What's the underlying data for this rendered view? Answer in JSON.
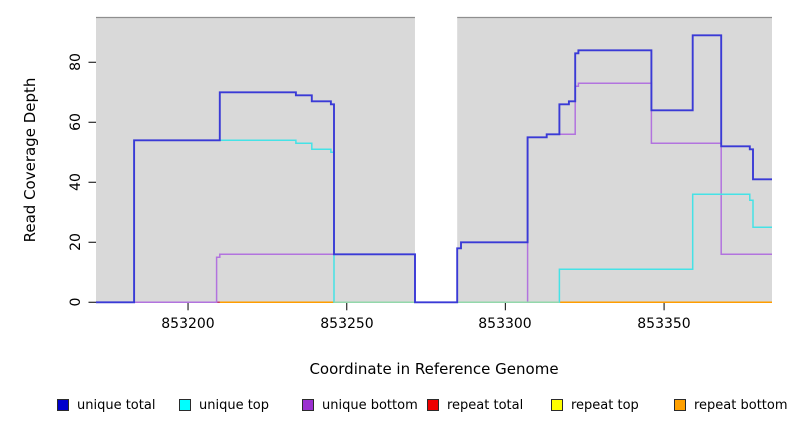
{
  "legend": {
    "items": [
      {
        "label": "unique total",
        "color": "#0000cd"
      },
      {
        "label": "unique top",
        "color": "#00ffff"
      },
      {
        "label": "unique bottom",
        "color": "#9b30d0"
      },
      {
        "label": "repeat total",
        "color": "#ee0000"
      },
      {
        "label": "repeat top",
        "color": "#ffff00"
      },
      {
        "label": "repeat bottom",
        "color": "#ffa000"
      }
    ]
  },
  "chart_data": {
    "type": "line",
    "subtype": "step",
    "title": "",
    "xlabel": "Coordinate in Reference Genome",
    "ylabel": "Read Coverage Depth",
    "xlim": [
      853171,
      853384
    ],
    "ylim": [
      0,
      95
    ],
    "x_ticks": [
      853200,
      853250,
      853300,
      853350
    ],
    "x_tick_labels": [
      "853200",
      "853250",
      "853300",
      "853350"
    ],
    "y_ticks": [
      0,
      20,
      40,
      60,
      80
    ],
    "y_tick_labels": [
      "0",
      "20",
      "40",
      "60",
      "80"
    ],
    "grid": false,
    "plot_bg": "#d9d9d9",
    "plot_border_top": "#8f8f8f",
    "gap_region": {
      "from": 853271.5,
      "to": 853284.8,
      "fill": "#ffffff"
    },
    "legend_position": "bottom",
    "series": [
      {
        "name": "unique total",
        "color": "#3a3ad6",
        "steps": [
          [
            853171,
            0
          ],
          [
            853183,
            54
          ],
          [
            853210,
            70
          ],
          [
            853234,
            69
          ],
          [
            853239,
            67
          ],
          [
            853245,
            66
          ],
          [
            853246,
            16
          ],
          [
            853271.5,
            0
          ],
          [
            853284.8,
            18
          ],
          [
            853286,
            20
          ],
          [
            853307,
            55
          ],
          [
            853313,
            56
          ],
          [
            853317,
            66
          ],
          [
            853320,
            67
          ],
          [
            853322,
            83
          ],
          [
            853323,
            84
          ],
          [
            853346,
            64
          ],
          [
            853359,
            89
          ],
          [
            853368,
            52
          ],
          [
            853377,
            51
          ],
          [
            853378,
            41
          ],
          [
            853384,
            41
          ]
        ]
      },
      {
        "name": "unique top",
        "color": "#45e2e6",
        "steps": [
          [
            853171,
            0
          ],
          [
            853183,
            54
          ],
          [
            853234,
            53
          ],
          [
            853239,
            51
          ],
          [
            853245,
            50
          ],
          [
            853246,
            0
          ],
          [
            853317,
            11
          ],
          [
            853359,
            36
          ],
          [
            853377,
            34
          ],
          [
            853378,
            25
          ],
          [
            853384,
            25
          ]
        ]
      },
      {
        "name": "unique bottom",
        "color": "#b273de",
        "steps": [
          [
            853171,
            0
          ],
          [
            853209,
            15
          ],
          [
            853210,
            16
          ],
          [
            853271.5,
            0
          ],
          [
            853307,
            55
          ],
          [
            853313,
            56
          ],
          [
            853322,
            72
          ],
          [
            853323,
            73
          ],
          [
            853346,
            53
          ],
          [
            853368,
            16
          ],
          [
            853384,
            16
          ]
        ]
      },
      {
        "name": "repeat total",
        "color": "#c43b6e",
        "steps": [
          [
            853171,
            0
          ],
          [
            853384,
            0
          ]
        ]
      },
      {
        "name": "repeat top",
        "color": "#f2f200",
        "steps": [
          [
            853171,
            0
          ],
          [
            853384,
            0
          ]
        ]
      },
      {
        "name": "repeat bottom",
        "color": "#ff9d00",
        "steps": [
          [
            853171,
            0
          ],
          [
            853384,
            0
          ]
        ]
      }
    ],
    "zero_overlays": [
      {
        "color": "#c43b6e",
        "from": 853183,
        "to": 853210,
        "layer": "under"
      },
      {
        "color": "#93d8ab",
        "from": 853246,
        "to": 853317,
        "layer": "over"
      }
    ]
  }
}
